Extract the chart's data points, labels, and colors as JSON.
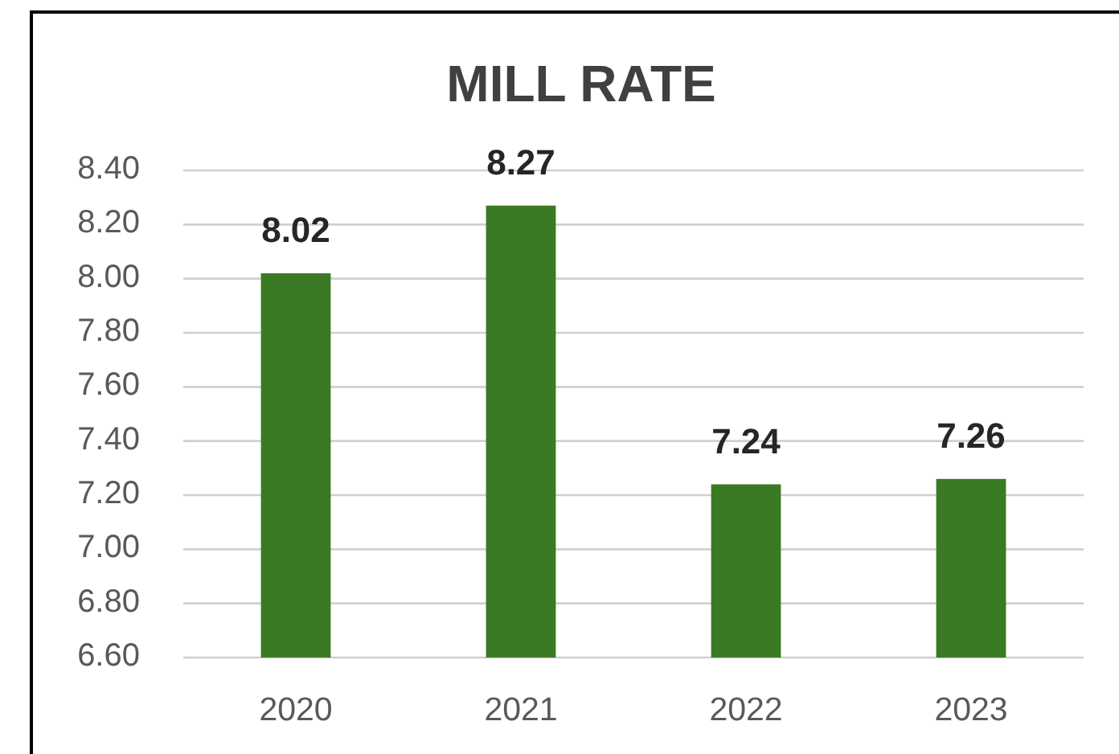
{
  "chart_data": {
    "type": "bar",
    "title": "MILL RATE",
    "categories": [
      "2020",
      "2021",
      "2022",
      "2023"
    ],
    "values": [
      8.02,
      8.27,
      7.24,
      7.26
    ],
    "color": "#3b7a24",
    "ylim": [
      6.6,
      8.4
    ],
    "yticks": [
      {
        "value": 6.6,
        "label": "6.60"
      },
      {
        "value": 6.8,
        "label": "6.80"
      },
      {
        "value": 7.0,
        "label": "7.00"
      },
      {
        "value": 7.2,
        "label": "7.20"
      },
      {
        "value": 7.4,
        "label": "7.40"
      },
      {
        "value": 7.6,
        "label": "7.60"
      },
      {
        "value": 7.8,
        "label": "7.80"
      },
      {
        "value": 8.0,
        "label": "8.00"
      },
      {
        "value": 8.2,
        "label": "8.20"
      },
      {
        "value": 8.4,
        "label": "8.40"
      }
    ],
    "grid": "y",
    "data_labels": true
  }
}
